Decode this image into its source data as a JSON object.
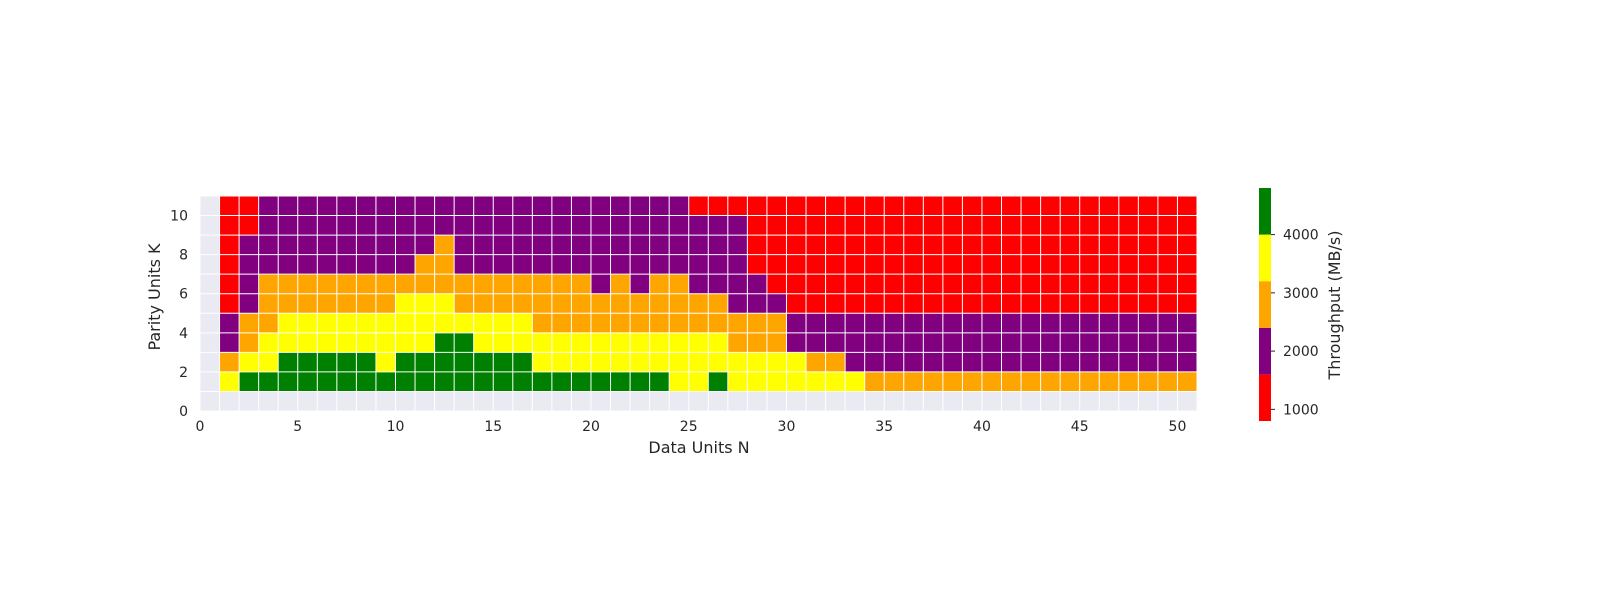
{
  "chart_data": {
    "type": "heatmap",
    "title": "",
    "xlabel": "Data Units N",
    "ylabel": "Parity Units K",
    "xlim": [
      0,
      51
    ],
    "ylim": [
      0,
      11
    ],
    "x_ticks": [
      0,
      5,
      10,
      15,
      20,
      25,
      30,
      35,
      40,
      45,
      50
    ],
    "y_ticks": [
      0,
      2,
      4,
      6,
      8,
      10
    ],
    "grid": true,
    "background_color": "#eaeaf2",
    "grid_color": "#ffffff",
    "colorbar": {
      "label": "Throughput (MB/s)",
      "ticks": [
        1000,
        2000,
        3000,
        4000
      ],
      "range": [
        800,
        4800
      ],
      "bins": [
        {
          "min": 800,
          "max": 1600,
          "color": "#ff0000",
          "symbol": "R"
        },
        {
          "min": 1600,
          "max": 2400,
          "color": "#800080",
          "symbol": "P"
        },
        {
          "min": 2400,
          "max": 3200,
          "color": "#ffa500",
          "symbol": "O"
        },
        {
          "min": 3200,
          "max": 4000,
          "color": "#ffff00",
          "symbol": "Y"
        },
        {
          "min": 4000,
          "max": 4800,
          "color": "#008000",
          "symbol": "G"
        }
      ]
    },
    "grid_cells": {
      "x_start": 1,
      "x_end": 50,
      "encoding": "one symbol per N from N=1 to N=50; R=800-1600, P=1600-2400, O=2400-3200, Y=3200-4000, G=4000-4800 MB/s",
      "rows": [
        {
          "K": 10,
          "cells": "RRPPPPPPPPPPPPPPPPPPPPPPRRRRRRRRRRRRRRRRRRRRRRRRRR"
        },
        {
          "K": 9,
          "cells": "RRPPPPPPPPPPPPPPPPPPPPPPPPPRRRRRRRRRRRRRRRRRRRRRRR"
        },
        {
          "K": 8,
          "cells": "RPPPPPPPPPPOPPPPPPPPPPPPPPPRRRRRRRRRRRRRRRRRRRRRRR"
        },
        {
          "K": 7,
          "cells": "RPPPPPPPPPOOPPPPPPPPPPPPPPPRRRRRRRRRRRRRRRRRRRRRRR"
        },
        {
          "K": 6,
          "cells": "RPOOOOOOOOOOOOOOOOOPOPOOPPPPRRRRRRRRRRRRRRRRRRRRRR"
        },
        {
          "K": 5,
          "cells": "RPOOOOOOOYYYOOOOOOOOOOOOOOPPPRRRRRRRRRRRRRRRRRRRRR"
        },
        {
          "K": 4,
          "cells": "POOYYYYYYYYYYYYYOOOOOOOOOOOOOPPPPPPPPPPPPPPPPPPPPP"
        },
        {
          "K": 3,
          "cells": "POYYYYYYYYYGGYYYYYYYYYYYYYOOOPPPPPPPPPPPPPPPPPPPPP"
        },
        {
          "K": 2,
          "cells": "OYYGGGGGYGGGGGGGYYYYYYYYYYYYYYOOPPPPPPPPPPPPPPPPPP"
        },
        {
          "K": 1,
          "cells": "YGGGGGGGGGGGGGGGGGGGGGGYYGYYYYYYYOOOOOOOOOOOOOOOOO"
        }
      ]
    }
  }
}
